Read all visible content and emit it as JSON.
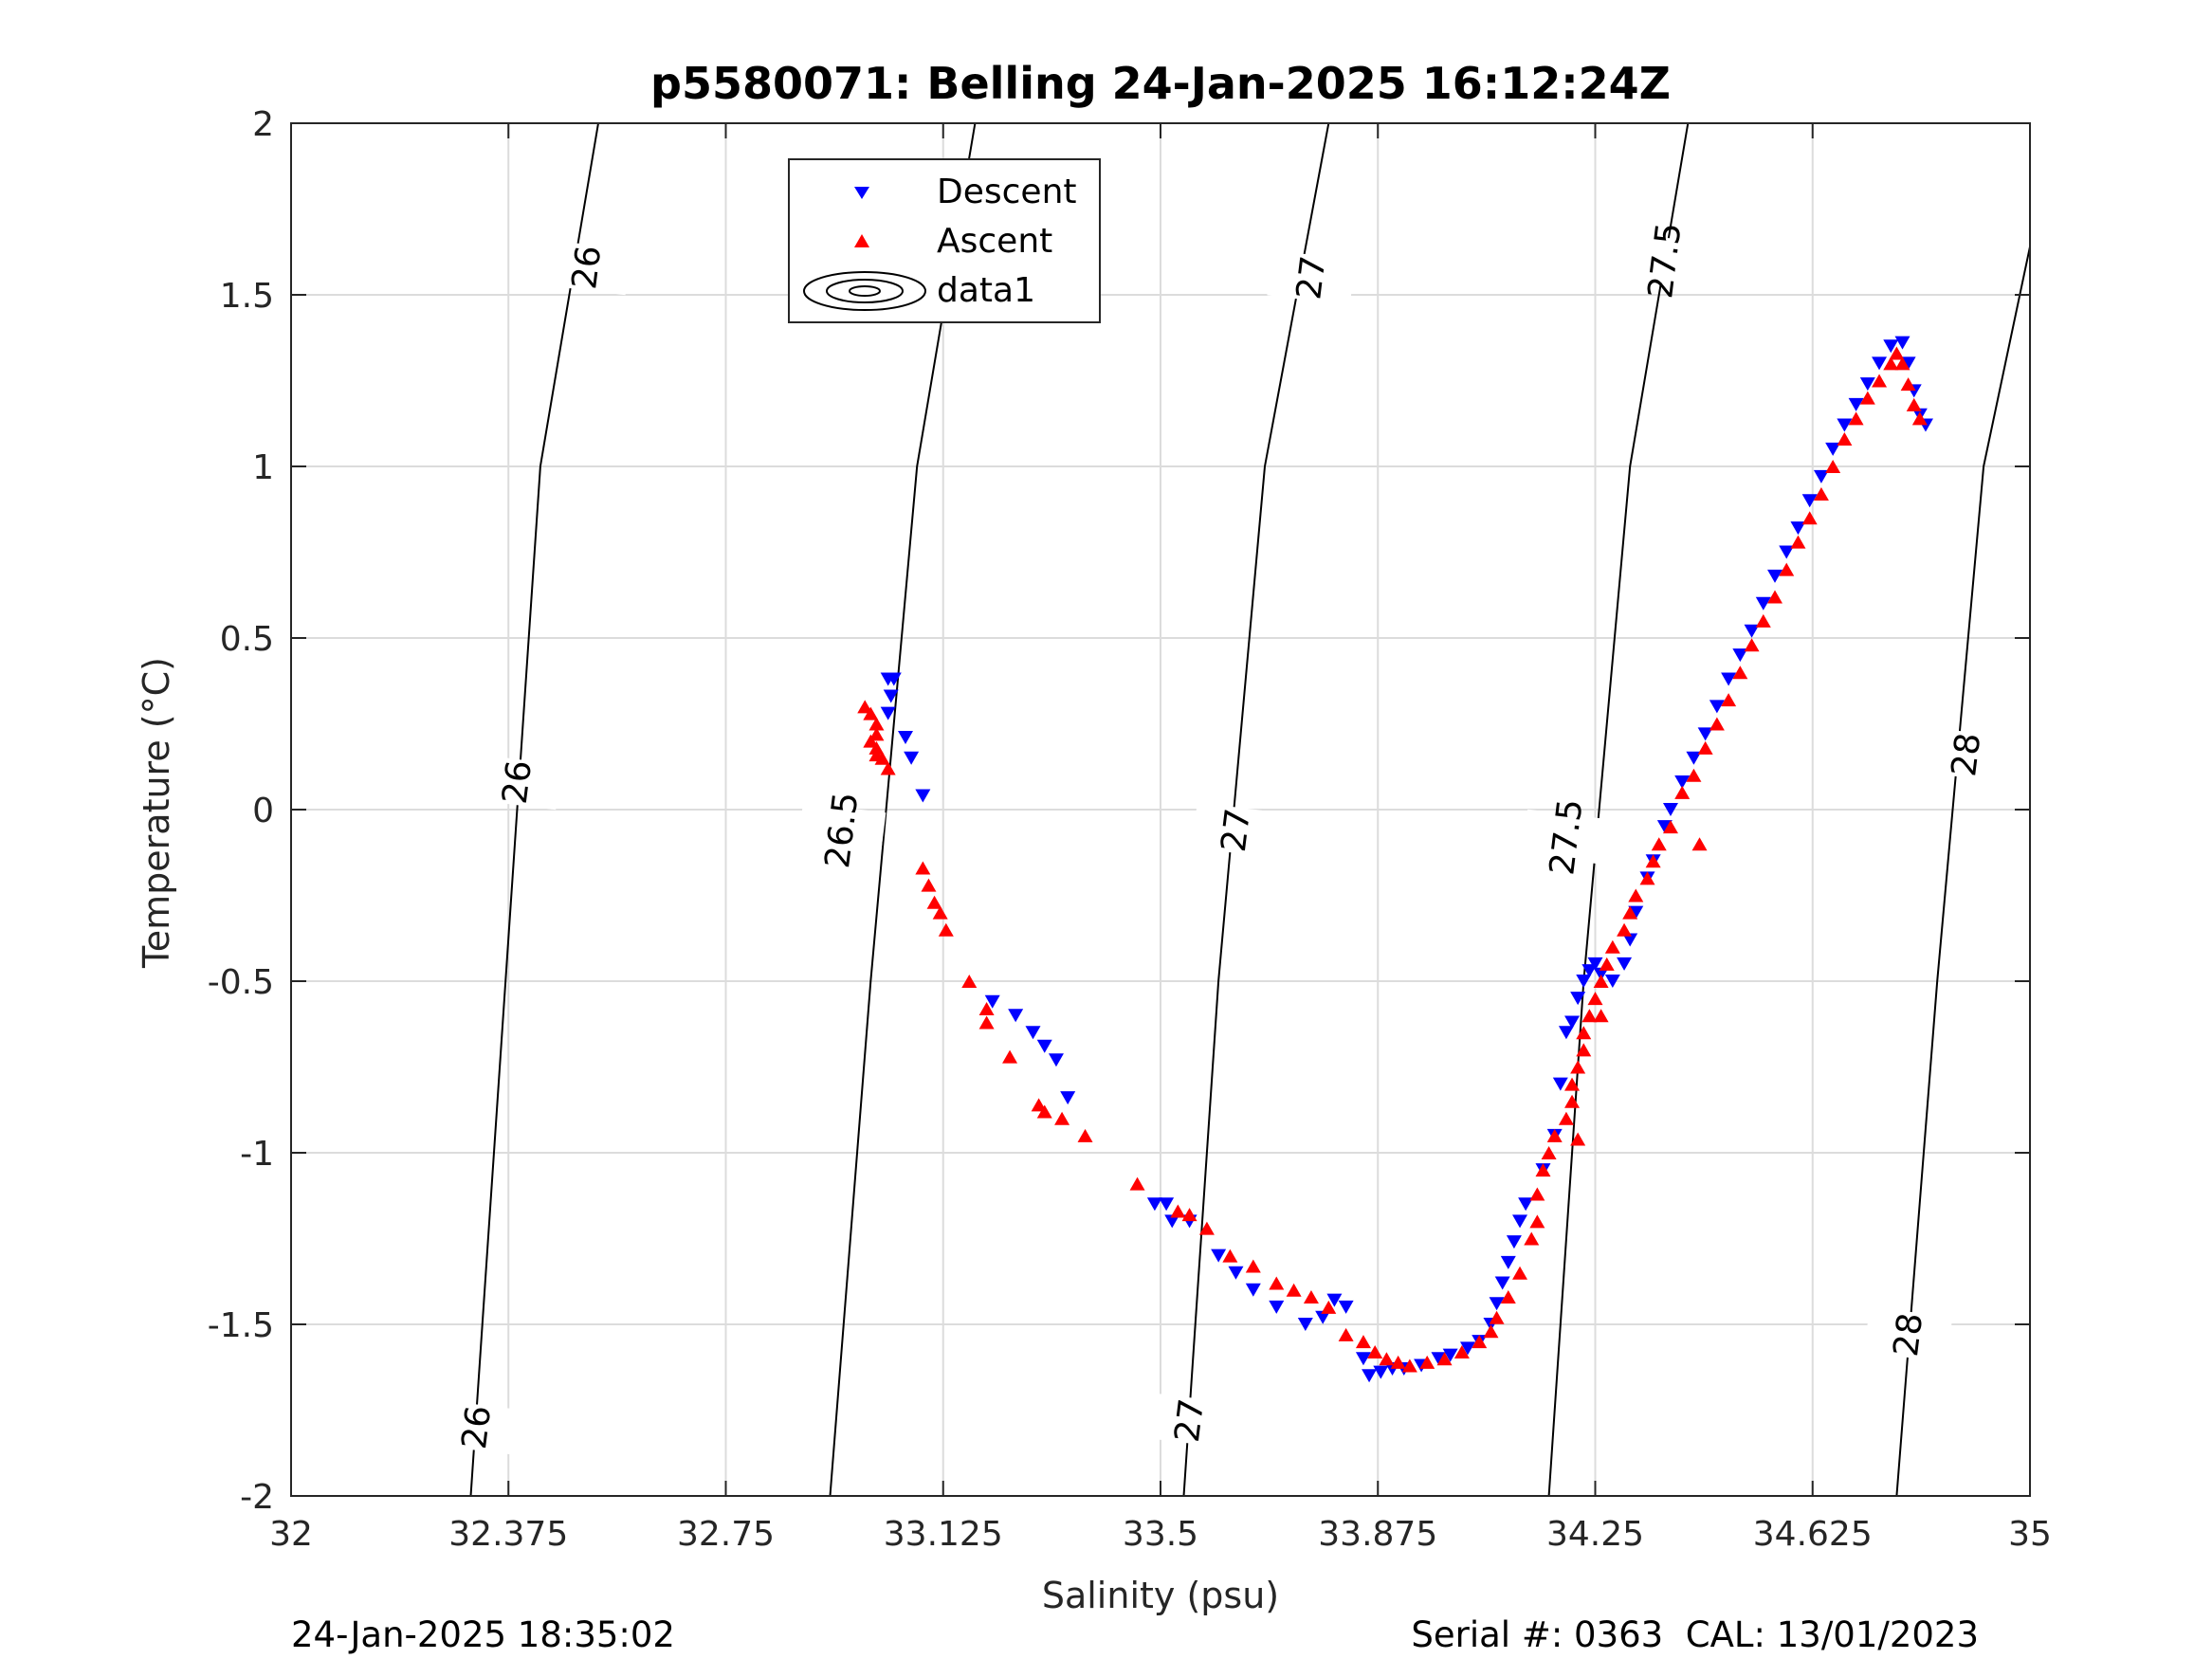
{
  "chart_data": {
    "type": "scatter",
    "title": "p5580071: Belling 24-Jan-2025 16:12:24Z",
    "xlabel": "Salinity (psu)",
    "ylabel": "Temperature (°C)",
    "xlim": [
      32,
      35
    ],
    "ylim": [
      -2,
      2
    ],
    "x_ticks": [
      "32",
      "32.375",
      "32.75",
      "33.125",
      "33.5",
      "33.875",
      "34.25",
      "34.625",
      "35"
    ],
    "y_ticks": [
      "2",
      "1.5",
      "1",
      "0.5",
      "0",
      "-0.5",
      "-1",
      "-1.5",
      "-2"
    ],
    "grid": true,
    "legend_position": "top-center",
    "legend": [
      "Descent",
      "Ascent",
      "data1"
    ],
    "colors": {
      "descent": "#0000ff",
      "ascent": "#ff0000",
      "contour": "#000000",
      "grid": "#dcdcdc"
    },
    "series": [
      {
        "name": "Descent",
        "marker": "triangle-down",
        "points": [
          [
            33.03,
            0.38
          ],
          [
            33.04,
            0.38
          ],
          [
            33.035,
            0.33
          ],
          [
            33.03,
            0.28
          ],
          [
            33.06,
            0.21
          ],
          [
            33.07,
            0.15
          ],
          [
            33.09,
            0.04
          ],
          [
            33.21,
            -0.56
          ],
          [
            33.25,
            -0.6
          ],
          [
            33.28,
            -0.65
          ],
          [
            33.3,
            -0.69
          ],
          [
            33.32,
            -0.73
          ],
          [
            33.34,
            -0.84
          ],
          [
            33.49,
            -1.15
          ],
          [
            33.51,
            -1.15
          ],
          [
            33.52,
            -1.2
          ],
          [
            33.55,
            -1.2
          ],
          [
            33.6,
            -1.3
          ],
          [
            33.63,
            -1.35
          ],
          [
            33.66,
            -1.4
          ],
          [
            33.7,
            -1.45
          ],
          [
            33.75,
            -1.5
          ],
          [
            33.78,
            -1.48
          ],
          [
            33.8,
            -1.43
          ],
          [
            33.82,
            -1.45
          ],
          [
            33.85,
            -1.6
          ],
          [
            33.86,
            -1.65
          ],
          [
            33.88,
            -1.64
          ],
          [
            33.9,
            -1.63
          ],
          [
            33.92,
            -1.63
          ],
          [
            33.95,
            -1.62
          ],
          [
            33.98,
            -1.6
          ],
          [
            34.0,
            -1.59
          ],
          [
            34.03,
            -1.57
          ],
          [
            34.05,
            -1.55
          ],
          [
            34.07,
            -1.5
          ],
          [
            34.08,
            -1.44
          ],
          [
            34.09,
            -1.38
          ],
          [
            34.1,
            -1.32
          ],
          [
            34.11,
            -1.26
          ],
          [
            34.12,
            -1.2
          ],
          [
            34.13,
            -1.15
          ],
          [
            34.16,
            -1.05
          ],
          [
            34.18,
            -0.95
          ],
          [
            34.19,
            -0.8
          ],
          [
            34.2,
            -0.65
          ],
          [
            34.21,
            -0.62
          ],
          [
            34.22,
            -0.55
          ],
          [
            34.23,
            -0.5
          ],
          [
            34.24,
            -0.47
          ],
          [
            34.25,
            -0.45
          ],
          [
            34.26,
            -0.48
          ],
          [
            34.28,
            -0.5
          ],
          [
            34.3,
            -0.45
          ],
          [
            34.31,
            -0.38
          ],
          [
            34.32,
            -0.3
          ],
          [
            34.34,
            -0.2
          ],
          [
            34.35,
            -0.15
          ],
          [
            34.37,
            -0.05
          ],
          [
            34.38,
            0.0
          ],
          [
            34.4,
            0.08
          ],
          [
            34.42,
            0.15
          ],
          [
            34.44,
            0.22
          ],
          [
            34.46,
            0.3
          ],
          [
            34.48,
            0.38
          ],
          [
            34.5,
            0.45
          ],
          [
            34.52,
            0.52
          ],
          [
            34.54,
            0.6
          ],
          [
            34.56,
            0.68
          ],
          [
            34.58,
            0.75
          ],
          [
            34.6,
            0.82
          ],
          [
            34.62,
            0.9
          ],
          [
            34.64,
            0.97
          ],
          [
            34.66,
            1.05
          ],
          [
            34.68,
            1.12
          ],
          [
            34.7,
            1.18
          ],
          [
            34.72,
            1.24
          ],
          [
            34.74,
            1.3
          ],
          [
            34.76,
            1.35
          ],
          [
            34.78,
            1.36
          ],
          [
            34.79,
            1.3
          ],
          [
            34.8,
            1.22
          ],
          [
            34.81,
            1.15
          ],
          [
            34.82,
            1.12
          ]
        ]
      },
      {
        "name": "Ascent",
        "marker": "triangle-up",
        "points": [
          [
            32.99,
            0.3
          ],
          [
            33.0,
            0.28
          ],
          [
            33.01,
            0.25
          ],
          [
            33.01,
            0.22
          ],
          [
            33.0,
            0.2
          ],
          [
            33.01,
            0.18
          ],
          [
            33.01,
            0.16
          ],
          [
            33.02,
            0.15
          ],
          [
            33.03,
            0.12
          ],
          [
            33.09,
            -0.17
          ],
          [
            33.1,
            -0.22
          ],
          [
            33.11,
            -0.27
          ],
          [
            33.12,
            -0.3
          ],
          [
            33.13,
            -0.35
          ],
          [
            33.17,
            -0.5
          ],
          [
            33.2,
            -0.58
          ],
          [
            33.2,
            -0.62
          ],
          [
            33.24,
            -0.72
          ],
          [
            33.29,
            -0.86
          ],
          [
            33.3,
            -0.88
          ],
          [
            33.33,
            -0.9
          ],
          [
            33.37,
            -0.95
          ],
          [
            33.46,
            -1.09
          ],
          [
            33.53,
            -1.17
          ],
          [
            33.55,
            -1.18
          ],
          [
            33.58,
            -1.22
          ],
          [
            33.62,
            -1.3
          ],
          [
            33.66,
            -1.33
          ],
          [
            33.7,
            -1.38
          ],
          [
            33.73,
            -1.4
          ],
          [
            33.76,
            -1.42
          ],
          [
            33.79,
            -1.45
          ],
          [
            33.82,
            -1.53
          ],
          [
            33.85,
            -1.55
          ],
          [
            33.87,
            -1.58
          ],
          [
            33.89,
            -1.6
          ],
          [
            33.91,
            -1.61
          ],
          [
            33.93,
            -1.62
          ],
          [
            33.96,
            -1.61
          ],
          [
            33.99,
            -1.6
          ],
          [
            34.02,
            -1.58
          ],
          [
            34.05,
            -1.55
          ],
          [
            34.07,
            -1.52
          ],
          [
            34.08,
            -1.48
          ],
          [
            34.1,
            -1.42
          ],
          [
            34.12,
            -1.35
          ],
          [
            34.14,
            -1.25
          ],
          [
            34.15,
            -1.2
          ],
          [
            34.15,
            -1.12
          ],
          [
            34.16,
            -1.05
          ],
          [
            34.17,
            -1.0
          ],
          [
            34.18,
            -0.95
          ],
          [
            34.2,
            -0.9
          ],
          [
            34.21,
            -0.85
          ],
          [
            34.21,
            -0.8
          ],
          [
            34.22,
            -0.75
          ],
          [
            34.23,
            -0.7
          ],
          [
            34.23,
            -0.65
          ],
          [
            34.24,
            -0.6
          ],
          [
            34.25,
            -0.55
          ],
          [
            34.26,
            -0.5
          ],
          [
            34.27,
            -0.45
          ],
          [
            34.28,
            -0.4
          ],
          [
            34.3,
            -0.35
          ],
          [
            34.31,
            -0.3
          ],
          [
            34.32,
            -0.25
          ],
          [
            34.34,
            -0.2
          ],
          [
            34.35,
            -0.15
          ],
          [
            34.36,
            -0.1
          ],
          [
            34.38,
            -0.05
          ],
          [
            34.4,
            0.05
          ],
          [
            34.42,
            0.1
          ],
          [
            34.44,
            0.18
          ],
          [
            34.46,
            0.25
          ],
          [
            34.48,
            0.32
          ],
          [
            34.5,
            0.4
          ],
          [
            34.52,
            0.48
          ],
          [
            34.54,
            0.55
          ],
          [
            34.56,
            0.62
          ],
          [
            34.58,
            0.7
          ],
          [
            34.6,
            0.78
          ],
          [
            34.62,
            0.85
          ],
          [
            34.64,
            0.92
          ],
          [
            34.66,
            1.0
          ],
          [
            34.68,
            1.08
          ],
          [
            34.7,
            1.14
          ],
          [
            34.72,
            1.2
          ],
          [
            34.74,
            1.25
          ],
          [
            34.76,
            1.3
          ],
          [
            34.77,
            1.33
          ],
          [
            34.78,
            1.3
          ],
          [
            34.79,
            1.24
          ],
          [
            34.8,
            1.18
          ],
          [
            34.81,
            1.14
          ],
          [
            34.43,
            -0.1
          ],
          [
            34.22,
            -0.96
          ],
          [
            34.26,
            -0.6
          ]
        ]
      }
    ],
    "contours": [
      {
        "label": "26",
        "points": [
          [
            32.31,
            -2.0
          ],
          [
            32.37,
            -0.5
          ],
          [
            32.43,
            1.0
          ],
          [
            32.53,
            2.0
          ]
        ],
        "label_at": [
          [
            32.32,
            -1.8
          ],
          [
            32.39,
            0.08
          ],
          [
            32.51,
            1.58
          ]
        ]
      },
      {
        "label": "26.5",
        "points": [
          [
            32.93,
            -2.0
          ],
          [
            33.0,
            -0.5
          ],
          [
            33.08,
            1.0
          ],
          [
            33.18,
            2.0
          ]
        ],
        "label_at": [
          [
            32.95,
            -0.06
          ],
          [
            33.13,
            1.6
          ]
        ]
      },
      {
        "label": "27",
        "points": [
          [
            33.54,
            -2.0
          ],
          [
            33.6,
            -0.5
          ],
          [
            33.68,
            1.0
          ],
          [
            33.79,
            2.0
          ]
        ],
        "label_at": [
          [
            33.55,
            -1.78
          ],
          [
            33.63,
            -0.06
          ],
          [
            33.76,
            1.55
          ]
        ]
      },
      {
        "label": "27.5",
        "points": [
          [
            34.17,
            -2.0
          ],
          [
            34.23,
            -0.5
          ],
          [
            34.31,
            1.0
          ],
          [
            34.41,
            2.0
          ]
        ],
        "label_at": [
          [
            34.2,
            -0.08
          ],
          [
            34.37,
            1.6
          ]
        ]
      },
      {
        "label": "28",
        "points": [
          [
            34.77,
            -2.0
          ],
          [
            34.84,
            -0.5
          ],
          [
            34.92,
            1.0
          ],
          [
            35.0,
            1.64
          ]
        ],
        "label_at": [
          [
            34.79,
            -1.53
          ],
          [
            34.89,
            0.16
          ]
        ]
      }
    ]
  },
  "footer": {
    "timestamp": "24-Jan-2025 18:35:02",
    "serial": "Serial #: 0363  CAL: 13/01/2023"
  }
}
